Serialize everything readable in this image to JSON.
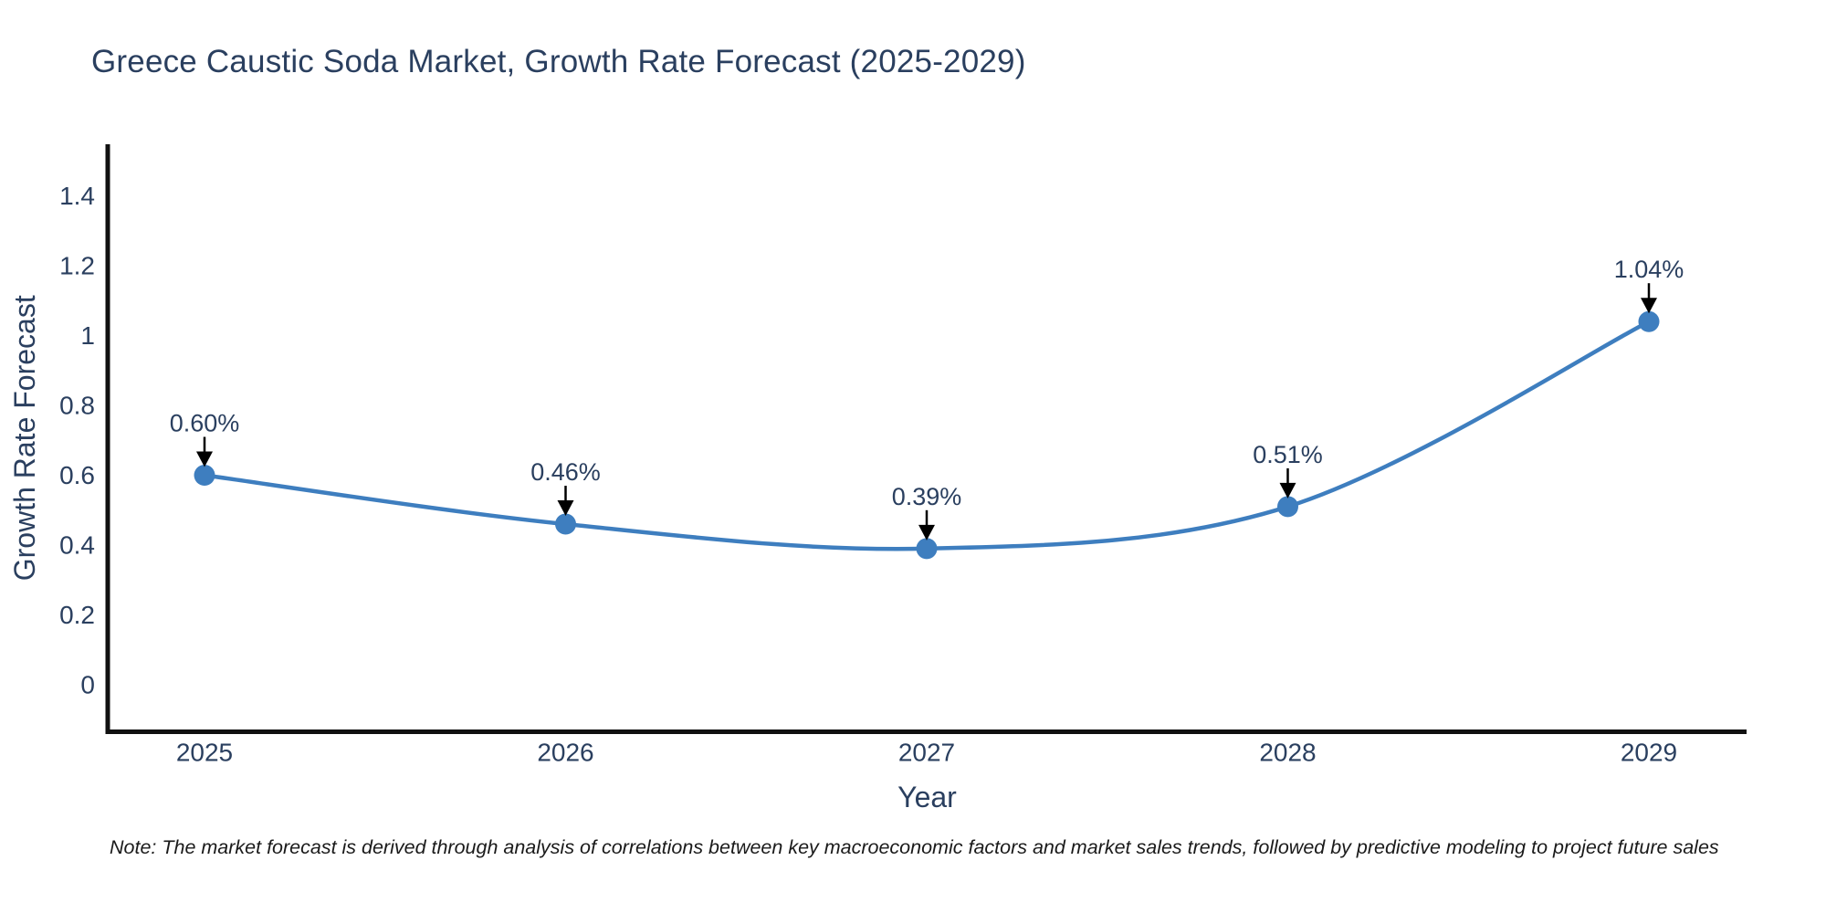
{
  "title": "Greece Caustic Soda Market, Growth Rate Forecast (2025-2029)",
  "note": "Note: The market forecast is derived through analysis of correlations between key macroeconomic factors and market sales trends, followed by predictive modeling to project future sales",
  "chart_data": {
    "type": "line",
    "line_shape": "spline",
    "categories": [
      "2025",
      "2026",
      "2027",
      "2028",
      "2029"
    ],
    "values": [
      0.6,
      0.46,
      0.39,
      0.51,
      1.04
    ],
    "point_labels": [
      "0.60%",
      "0.46%",
      "0.39%",
      "0.51%",
      "1.04%"
    ],
    "title": "Greece Caustic Soda Market, Growth Rate Forecast (2025-2029)",
    "xlabel": "Year",
    "ylabel": "Growth Rate Forecast",
    "yticks": [
      "0",
      "0.2",
      "0.4",
      "0.6",
      "0.8",
      "1",
      "1.2",
      "1.4"
    ],
    "ylim": [
      -0.13,
      1.55
    ],
    "grid": false,
    "legend": false,
    "colors": {
      "line": "#3e7ebf",
      "marker": "#3e7ebf",
      "text": "#2a3f5f",
      "axis": "#111111",
      "annotation_arrow": "#000000",
      "background": "#ffffff"
    }
  }
}
